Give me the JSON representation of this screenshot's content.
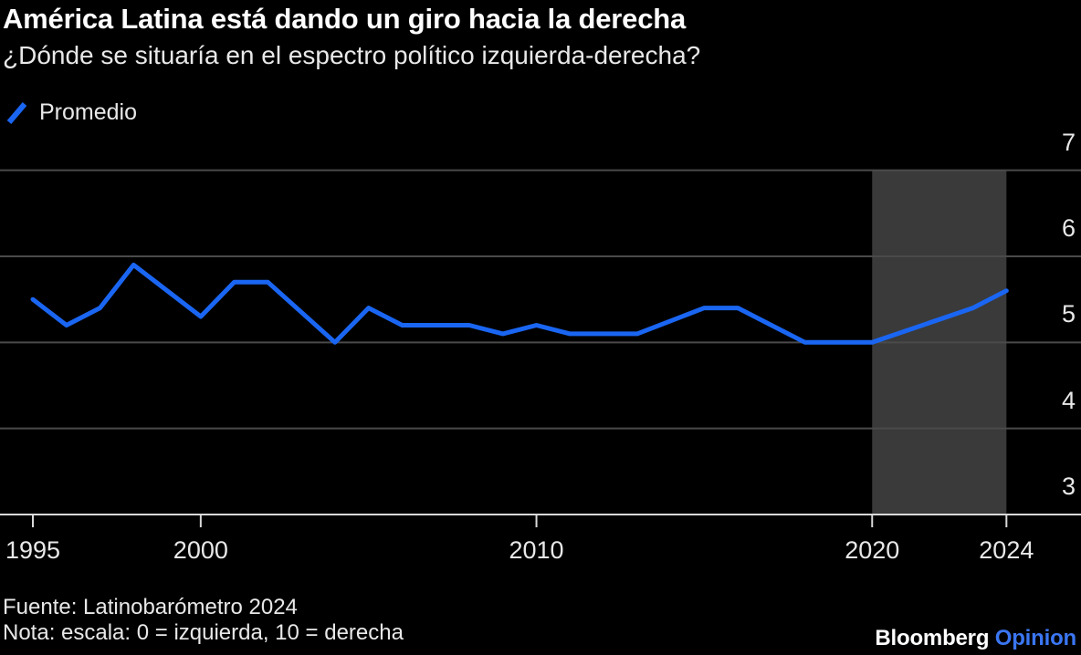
{
  "header": {
    "title": "América Latina está dando un giro hacia la derecha",
    "subtitle": "¿Dónde se situaría en el espectro político izquierda-derecha?"
  },
  "legend": {
    "label": "Promedio"
  },
  "chart_data": {
    "type": "line",
    "title": "América Latina está dando un giro hacia la derecha",
    "subtitle": "¿Dónde se situaría en el espectro político izquierda-derecha?",
    "xlabel": "",
    "ylabel": "",
    "x": [
      1995,
      1996,
      1997,
      1998,
      2000,
      2001,
      2002,
      2004,
      2005,
      2006,
      2007,
      2008,
      2009,
      2010,
      2011,
      2013,
      2015,
      2016,
      2017,
      2018,
      2020,
      2023,
      2024
    ],
    "series": [
      {
        "name": "Promedio",
        "color": "#1a66f2",
        "values": [
          5.5,
          5.2,
          5.4,
          5.9,
          5.3,
          5.7,
          5.7,
          5.0,
          5.4,
          5.2,
          5.2,
          5.2,
          5.1,
          5.2,
          5.1,
          5.1,
          5.4,
          5.4,
          5.2,
          5.0,
          5.0,
          5.4,
          5.6
        ]
      }
    ],
    "xticks": [
      1995,
      2000,
      2010,
      2020,
      2024
    ],
    "yticks": [
      3,
      4,
      5,
      6,
      7
    ],
    "xlim": [
      1995,
      2026
    ],
    "ylim": [
      3,
      7.5
    ],
    "grid": "horizontal gridlines, y-axis labels on right, ticks below x-axis",
    "legend_position": "top-left",
    "highlight_band": {
      "from": 2020,
      "to": 2024,
      "color": "#3a3a3a"
    }
  },
  "colors": {
    "background": "#000000",
    "line": "#1a66f2",
    "gridline": "#4a4a4a",
    "axis": "#d9d9d9",
    "band": "#3a3a3a",
    "text": "#e8e8e8",
    "title": "#ffffff",
    "logo_product": "#3b76f2"
  },
  "footer": {
    "source": "Fuente: Latinobarómetro 2024",
    "note": "Nota: escala: 0 = izquierda, 10 = derecha",
    "logo": {
      "brand": "Bloomberg",
      "product": "Opinion"
    }
  }
}
